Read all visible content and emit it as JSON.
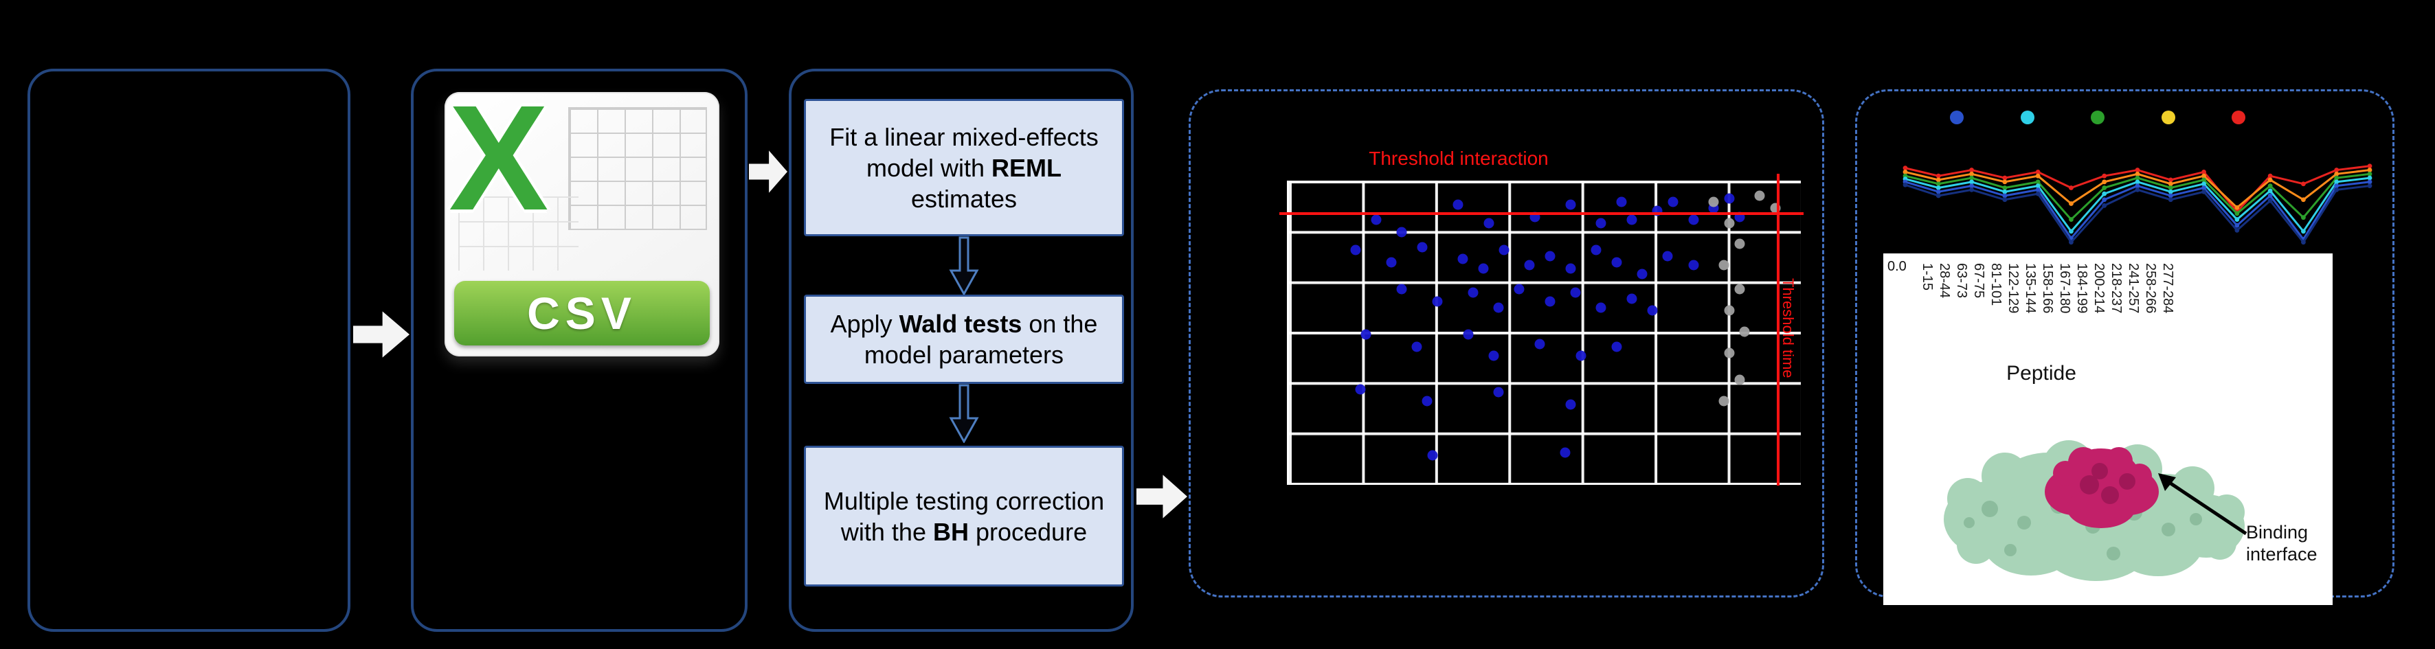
{
  "colors": {
    "background": "#000000",
    "solid_box_border": "#24467e",
    "dashed_box_border": "#4472c4",
    "step_fill": "#dae3f3",
    "step_border": "#2f5496",
    "threshold": "#ff1212",
    "excel_green": "#3aa83a",
    "banner_green": "#53a02e"
  },
  "csv_icon": {
    "x_letter": "X",
    "extension": "CSV"
  },
  "steps": [
    {
      "seg1": "Fit a linear mixed-effects model with ",
      "bold": "REML",
      "seg2": " estimates"
    },
    {
      "seg1": "Apply ",
      "bold": "Wald tests",
      "seg2": " on the model parameters"
    },
    {
      "seg1": "Multiple testing correction with the ",
      "bold": "BH",
      "seg2": " procedure"
    }
  ],
  "annotations": {
    "binding_interface": "Binding interface"
  },
  "chart_data": [
    {
      "type": "scatter",
      "title": "Threshold interaction",
      "right_label": "Threshold time",
      "grid": {
        "x_divisions": 7,
        "y_divisions": 6,
        "grid_on": true
      },
      "thresholds": {
        "h_line_y": 0.895,
        "v_line_x": 0.953,
        "color": "#ff1212"
      },
      "series": [
        {
          "name": "significant-peptides",
          "color": "#1818cf",
          "points": [
            [
              0.17,
              0.87
            ],
            [
              0.22,
              0.83
            ],
            [
              0.33,
              0.92
            ],
            [
              0.39,
              0.86
            ],
            [
              0.48,
              0.88
            ],
            [
              0.55,
              0.92
            ],
            [
              0.61,
              0.86
            ],
            [
              0.65,
              0.93
            ],
            [
              0.67,
              0.87
            ],
            [
              0.72,
              0.9
            ],
            [
              0.75,
              0.93
            ],
            [
              0.79,
              0.87
            ],
            [
              0.83,
              0.91
            ],
            [
              0.86,
              0.94
            ],
            [
              0.88,
              0.88
            ],
            [
              0.13,
              0.77
            ],
            [
              0.2,
              0.73
            ],
            [
              0.26,
              0.78
            ],
            [
              0.34,
              0.74
            ],
            [
              0.38,
              0.71
            ],
            [
              0.42,
              0.77
            ],
            [
              0.47,
              0.72
            ],
            [
              0.51,
              0.75
            ],
            [
              0.55,
              0.71
            ],
            [
              0.6,
              0.77
            ],
            [
              0.64,
              0.73
            ],
            [
              0.69,
              0.69
            ],
            [
              0.74,
              0.75
            ],
            [
              0.79,
              0.72
            ],
            [
              0.22,
              0.64
            ],
            [
              0.29,
              0.6
            ],
            [
              0.36,
              0.63
            ],
            [
              0.41,
              0.58
            ],
            [
              0.45,
              0.64
            ],
            [
              0.51,
              0.6
            ],
            [
              0.56,
              0.63
            ],
            [
              0.61,
              0.58
            ],
            [
              0.67,
              0.61
            ],
            [
              0.71,
              0.57
            ],
            [
              0.15,
              0.49
            ],
            [
              0.25,
              0.45
            ],
            [
              0.35,
              0.49
            ],
            [
              0.4,
              0.42
            ],
            [
              0.49,
              0.46
            ],
            [
              0.57,
              0.42
            ],
            [
              0.64,
              0.45
            ],
            [
              0.14,
              0.31
            ],
            [
              0.27,
              0.27
            ],
            [
              0.41,
              0.3
            ],
            [
              0.55,
              0.26
            ],
            [
              0.28,
              0.09
            ],
            [
              0.54,
              0.1
            ]
          ]
        },
        {
          "name": "non-significant-peptides",
          "color": "#a0a0a0",
          "points": [
            [
              0.83,
              0.93
            ],
            [
              0.86,
              0.86
            ],
            [
              0.88,
              0.79
            ],
            [
              0.85,
              0.72
            ],
            [
              0.88,
              0.64
            ],
            [
              0.86,
              0.57
            ],
            [
              0.89,
              0.5
            ],
            [
              0.86,
              0.43
            ],
            [
              0.88,
              0.34
            ],
            [
              0.85,
              0.27
            ],
            [
              0.92,
              0.95
            ],
            [
              0.95,
              0.91
            ]
          ]
        }
      ]
    },
    {
      "type": "line",
      "categories": [
        "1-15",
        "28-44",
        "63-73",
        "67-75",
        "81-101",
        "122-129",
        "135-144",
        "158-166",
        "167-180",
        "184-199",
        "200-214",
        "218-237",
        "241-257",
        "258-266",
        "277-284"
      ],
      "xlabel": "Peptide",
      "y_tick_label": "0.0",
      "legend_marker_colors": [
        "#2a52cc",
        "#2fd0e8",
        "#2ca02c",
        "#f2d02a",
        "#e8231f"
      ],
      "series": [
        {
          "name": "series-red",
          "color": "#e8231f",
          "values": [
            0.78,
            0.7,
            0.76,
            0.68,
            0.74,
            0.58,
            0.7,
            0.76,
            0.66,
            0.74,
            0.34,
            0.7,
            0.62,
            0.76,
            0.8
          ]
        },
        {
          "name": "series-orange",
          "color": "#ff8c1a",
          "values": [
            0.74,
            0.66,
            0.72,
            0.64,
            0.7,
            0.42,
            0.64,
            0.72,
            0.62,
            0.7,
            0.38,
            0.66,
            0.46,
            0.72,
            0.76
          ]
        },
        {
          "name": "series-green",
          "color": "#2ca02c",
          "values": [
            0.7,
            0.62,
            0.68,
            0.58,
            0.64,
            0.26,
            0.58,
            0.68,
            0.58,
            0.66,
            0.32,
            0.6,
            0.28,
            0.68,
            0.72
          ]
        },
        {
          "name": "series-cyan",
          "color": "#2fd0e8",
          "values": [
            0.67,
            0.58,
            0.64,
            0.54,
            0.6,
            0.14,
            0.52,
            0.64,
            0.54,
            0.62,
            0.26,
            0.55,
            0.14,
            0.64,
            0.68
          ]
        },
        {
          "name": "series-blue",
          "color": "#2a52cc",
          "values": [
            0.64,
            0.54,
            0.6,
            0.5,
            0.56,
            0.07,
            0.46,
            0.6,
            0.5,
            0.58,
            0.2,
            0.5,
            0.06,
            0.6,
            0.64
          ]
        },
        {
          "name": "series-navy",
          "color": "#15307f",
          "values": [
            0.61,
            0.5,
            0.56,
            0.46,
            0.52,
            0.03,
            0.4,
            0.56,
            0.46,
            0.54,
            0.15,
            0.45,
            0.03,
            0.56,
            0.6
          ]
        }
      ]
    }
  ]
}
